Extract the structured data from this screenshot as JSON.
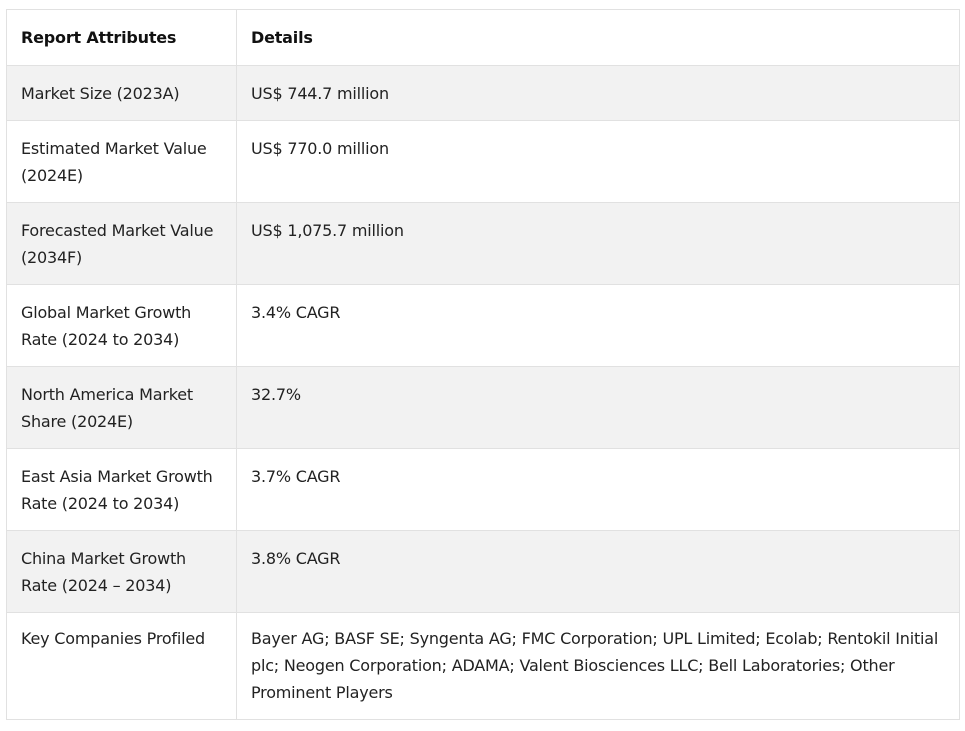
{
  "table": {
    "headers": {
      "attribute": "Report Attributes",
      "details": "Details"
    },
    "rows": [
      {
        "attribute": "Market Size (2023A)",
        "details": "US$ 744.7 million"
      },
      {
        "attribute": "Estimated Market Value (2024E)",
        "details": "US$ 770.0 million"
      },
      {
        "attribute": "Forecasted Market Value (2034F)",
        "details": "US$ 1,075.7 million"
      },
      {
        "attribute": "Global Market Growth Rate (2024 to 2034)",
        "details": "3.4% CAGR"
      },
      {
        "attribute": "North America Market Share (2024E)",
        "details": "32.7%"
      },
      {
        "attribute": "East Asia Market Growth Rate (2024 to 2034)",
        "details": "3.7% CAGR"
      },
      {
        "attribute": "China Market Growth Rate (2024 – 2034)",
        "details": "3.8% CAGR"
      },
      {
        "attribute": "Key Companies Profiled",
        "details": "Bayer AG; BASF SE; Syngenta AG; FMC Corporation; UPL Limited; Ecolab; Rentokil Initial plc; Neogen Corporation; ADAMA; Valent Biosciences LLC; Bell Laboratories; Other Prominent Players"
      }
    ]
  },
  "colors": {
    "header_bg": "#ffffff",
    "stripe_bg": "#f2f2f2",
    "border": "#e1e1e1",
    "text": "#222222"
  }
}
